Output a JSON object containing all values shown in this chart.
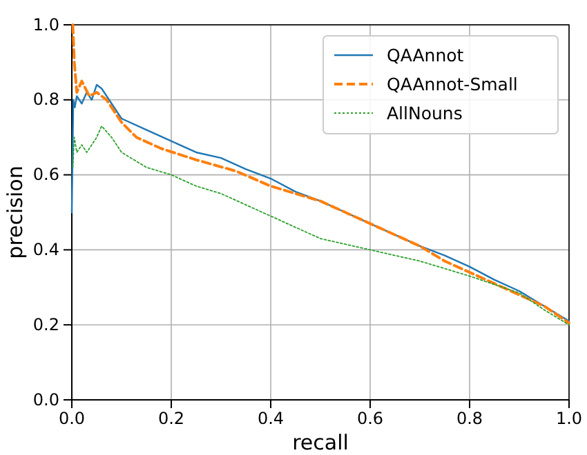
{
  "chart_data": {
    "type": "line",
    "xlabel": "recall",
    "ylabel": "precision",
    "xlim": [
      0,
      1
    ],
    "ylim": [
      0,
      1
    ],
    "xticks": [
      {
        "value": 0,
        "label": "0.0"
      },
      {
        "value": 0.2,
        "label": "0.2"
      },
      {
        "value": 0.4,
        "label": "0.4"
      },
      {
        "value": 0.6,
        "label": "0.6"
      },
      {
        "value": 0.8,
        "label": "0.8"
      },
      {
        "value": 1,
        "label": "1.0"
      }
    ],
    "yticks": [
      {
        "value": 0,
        "label": "0.0"
      },
      {
        "value": 0.2,
        "label": "0.2"
      },
      {
        "value": 0.4,
        "label": "0.4"
      },
      {
        "value": 0.6,
        "label": "0.6"
      },
      {
        "value": 0.8,
        "label": "0.8"
      },
      {
        "value": 1,
        "label": "1.0"
      }
    ],
    "grid": true,
    "legend": "top right",
    "series": [
      {
        "name": "QAAnnot",
        "color": "#1f77b4",
        "line_style": "solid",
        "x": [
          0,
          0.003,
          0.006,
          0.01,
          0.02,
          0.03,
          0.04,
          0.05,
          0.06,
          0.08,
          0.1,
          0.15,
          0.2,
          0.25,
          0.3,
          0.35,
          0.4,
          0.45,
          0.5,
          0.55,
          0.6,
          0.65,
          0.7,
          0.75,
          0.8,
          0.85,
          0.9,
          0.95,
          1
        ],
        "values": [
          0.5,
          0.8,
          0.78,
          0.81,
          0.79,
          0.82,
          0.8,
          0.84,
          0.83,
          0.79,
          0.75,
          0.72,
          0.69,
          0.66,
          0.645,
          0.615,
          0.59,
          0.555,
          0.53,
          0.5,
          0.47,
          0.44,
          0.41,
          0.385,
          0.355,
          0.32,
          0.29,
          0.25,
          0.21
        ]
      },
      {
        "name": "QAAnnot-Small",
        "color": "#ff7f0e",
        "line_style": "dashed",
        "x": [
          0.002,
          0.005,
          0.01,
          0.02,
          0.035,
          0.05,
          0.07,
          0.1,
          0.13,
          0.18,
          0.25,
          0.33,
          0.4,
          0.5,
          0.6,
          0.7,
          0.75,
          0.8,
          0.85,
          0.9,
          0.95,
          1
        ],
        "values": [
          1.0,
          0.9,
          0.82,
          0.85,
          0.81,
          0.82,
          0.8,
          0.74,
          0.7,
          0.67,
          0.64,
          0.61,
          0.57,
          0.53,
          0.47,
          0.41,
          0.37,
          0.34,
          0.31,
          0.28,
          0.25,
          0.205
        ]
      },
      {
        "name": "AllNouns",
        "color": "#2ca02c",
        "line_style": "dotted",
        "x": [
          0.002,
          0.005,
          0.01,
          0.02,
          0.03,
          0.05,
          0.06,
          0.08,
          0.1,
          0.15,
          0.2,
          0.25,
          0.3,
          0.35,
          0.4,
          0.45,
          0.5,
          0.6,
          0.7,
          0.8,
          0.9,
          0.95,
          1
        ],
        "values": [
          0.62,
          0.7,
          0.66,
          0.68,
          0.66,
          0.7,
          0.73,
          0.7,
          0.66,
          0.62,
          0.6,
          0.57,
          0.55,
          0.52,
          0.49,
          0.46,
          0.43,
          0.4,
          0.37,
          0.33,
          0.285,
          0.24,
          0.2
        ]
      }
    ]
  }
}
